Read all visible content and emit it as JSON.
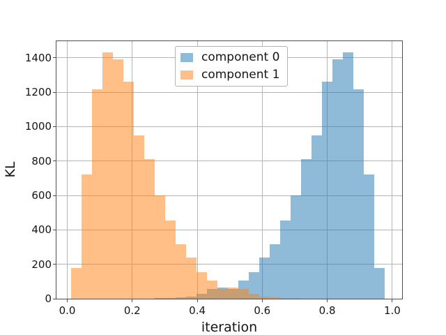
{
  "chart_data": {
    "type": "bar",
    "subtype": "histogram-overlaid",
    "title": "",
    "xlabel": "iteration",
    "ylabel": "KL",
    "xlim": [
      -0.0332,
      1.0302
    ],
    "ylim": [
      0,
      1496
    ],
    "grid": true,
    "grid_color": "#b4b4b4",
    "bin_start": 0.0126,
    "bin_width": 0.03216,
    "n_bins": 30,
    "xticks": {
      "values": [
        0.0,
        0.2,
        0.4,
        0.6,
        0.8,
        1.0
      ],
      "labels": [
        "0.0",
        "0.2",
        "0.4",
        "0.6",
        "0.8",
        "1.0"
      ]
    },
    "yticks": {
      "values": [
        0,
        200,
        400,
        600,
        800,
        1000,
        1200,
        1400
      ],
      "labels": [
        "0",
        "200",
        "400",
        "600",
        "800",
        "1000",
        "1200",
        "1400"
      ]
    },
    "legend_position": "upper center",
    "series": [
      {
        "name": "component 0",
        "base_color": "#1f77b4",
        "fill": "rgba(31,119,180,0.5)",
        "legend_swatch": "#8fbbd9",
        "values": [
          0,
          0,
          0,
          0,
          0,
          0,
          0,
          0,
          3,
          5,
          8,
          14,
          30,
          55,
          65,
          58,
          105,
          155,
          240,
          315,
          455,
          600,
          810,
          950,
          1260,
          1390,
          1430,
          1215,
          720,
          180
        ]
      },
      {
        "name": "component 1",
        "base_color": "#ff7f0e",
        "fill": "rgba(255,127,14,0.5)",
        "legend_swatch": "#ffbf86",
        "values": [
          180,
          720,
          1215,
          1430,
          1390,
          1260,
          950,
          810,
          600,
          455,
          315,
          240,
          155,
          105,
          58,
          65,
          55,
          30,
          14,
          8,
          5,
          3,
          0,
          0,
          0,
          0,
          0,
          0,
          0,
          0
        ]
      }
    ]
  }
}
